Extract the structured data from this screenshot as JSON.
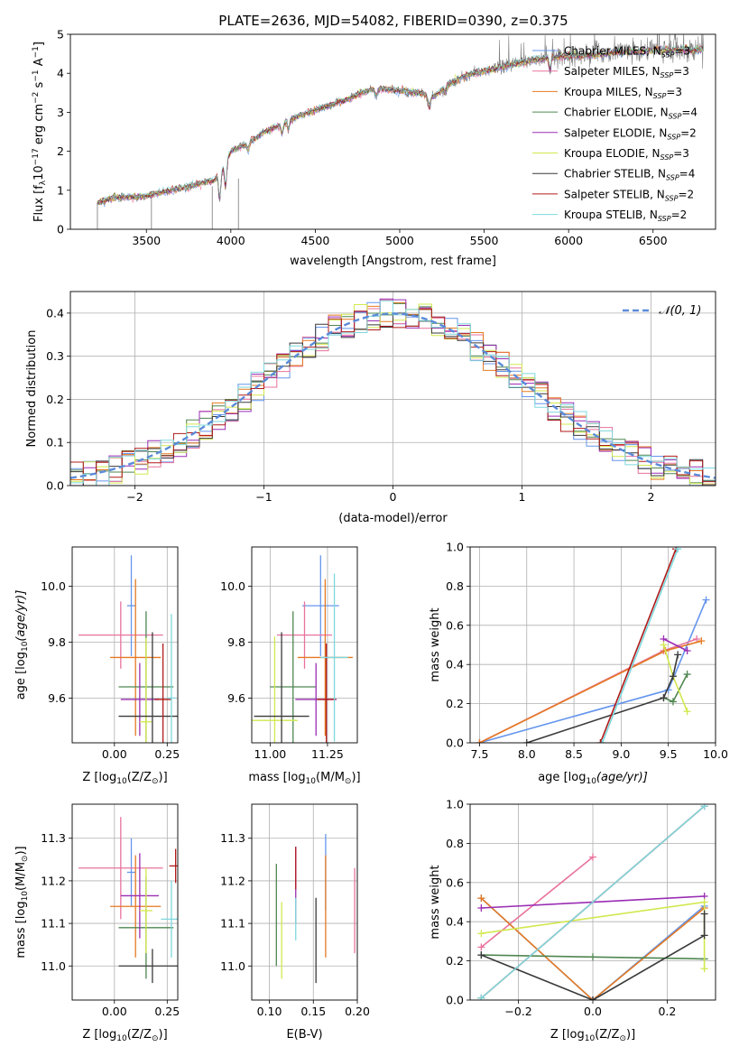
{
  "figure": {
    "title": "PLATE=2636, MJD=54082, FIBERID=0390, z=0.375"
  },
  "models": [
    {
      "name": "Chabrier MILES",
      "nssp": "3",
      "color": "#6495ED"
    },
    {
      "name": "Salpeter MILES",
      "nssp": "3",
      "color": "#E8729D"
    },
    {
      "name": "Kroupa MILES",
      "nssp": "3",
      "color": "#E47922"
    },
    {
      "name": "Chabrier ELODIE",
      "nssp": "4",
      "color": "#4F8650"
    },
    {
      "name": "Salpeter ELODIE",
      "nssp": "2",
      "color": "#9A2DB4"
    },
    {
      "name": "Kroupa ELODIE",
      "nssp": "3",
      "color": "#D2E84E"
    },
    {
      "name": "Chabrier STELIB",
      "nssp": "4",
      "color": "#3A3A3A"
    },
    {
      "name": "Salpeter STELIB",
      "nssp": "2",
      "color": "#B01A1A"
    },
    {
      "name": "Kroupa STELIB",
      "nssp": "2",
      "color": "#7ED8DD"
    }
  ],
  "legend_nssp_label": "N",
  "legend_nssp_sub": "SSP",
  "gauss_legend": "𝒩(0, 1)",
  "chart_data": [
    {
      "id": "spectrum",
      "type": "line",
      "xlabel": "wavelength [Angstrom, rest frame]",
      "ylabel_parts": [
        "Flux [f",
        "λ",
        "10",
        "−17",
        " erg cm",
        "−2",
        " s",
        "−1",
        " A",
        "−1",
        "]"
      ],
      "xlim": [
        3050,
        6870
      ],
      "ylim": [
        0,
        5
      ],
      "xticks": [
        3500,
        4000,
        4500,
        5000,
        5500,
        6000,
        6500
      ],
      "yticks": [
        0,
        1,
        2,
        3,
        4,
        5
      ],
      "xrange_data": [
        3210,
        6800
      ],
      "legend_position": "right",
      "anchors": [
        [
          3210,
          0.68
        ],
        [
          3300,
          0.8
        ],
        [
          3400,
          0.82
        ],
        [
          3500,
          0.85
        ],
        [
          3600,
          0.95
        ],
        [
          3700,
          1.05
        ],
        [
          3800,
          1.15
        ],
        [
          3850,
          1.2
        ],
        [
          3900,
          1.25
        ],
        [
          3950,
          1.55
        ],
        [
          4000,
          2.0
        ],
        [
          4100,
          2.2
        ],
        [
          4200,
          2.5
        ],
        [
          4300,
          2.7
        ],
        [
          4400,
          2.9
        ],
        [
          4500,
          3.05
        ],
        [
          4600,
          3.2
        ],
        [
          4700,
          3.35
        ],
        [
          4800,
          3.55
        ],
        [
          4900,
          3.6
        ],
        [
          5000,
          3.55
        ],
        [
          5100,
          3.5
        ],
        [
          5200,
          3.4
        ],
        [
          5300,
          3.75
        ],
        [
          5400,
          3.95
        ],
        [
          5500,
          4.05
        ],
        [
          5600,
          4.15
        ],
        [
          5700,
          4.25
        ],
        [
          5800,
          4.35
        ],
        [
          5900,
          4.4
        ],
        [
          6000,
          4.45
        ],
        [
          6100,
          4.45
        ],
        [
          6200,
          4.5
        ],
        [
          6300,
          4.55
        ],
        [
          6400,
          4.55
        ],
        [
          6500,
          4.6
        ],
        [
          6600,
          4.6
        ],
        [
          6800,
          4.6
        ]
      ],
      "absorption_features": [
        [
          3934,
          0.75
        ],
        [
          3969,
          0.7
        ],
        [
          4102,
          0.2
        ],
        [
          4304,
          0.3
        ],
        [
          4341,
          0.25
        ],
        [
          4861,
          0.2
        ],
        [
          5175,
          0.35
        ],
        [
          5270,
          0.15
        ],
        [
          5890,
          0.3
        ]
      ]
    },
    {
      "id": "residuals",
      "type": "line",
      "xlabel": "(data-model)/error",
      "ylabel": "Normed distribution",
      "xlim": [
        -2.5,
        2.5
      ],
      "ylim": [
        0,
        0.45
      ],
      "xticks": [
        -2,
        -1,
        0,
        1,
        2
      ],
      "yticks": [
        0.0,
        0.1,
        0.2,
        0.3,
        0.4
      ],
      "grid": true,
      "bin_width": 0.1,
      "gauss_color": "#5B8BD9",
      "legend_position": "top-right"
    },
    {
      "id": "z-age",
      "type": "scatter",
      "xlabel_parts": [
        "Z [log",
        "10",
        "(Z/Z",
        "⊙",
        ")]"
      ],
      "ylabel_parts": [
        "age  [log",
        "10",
        "(age/yr)]"
      ],
      "xlim": [
        -0.2,
        0.3
      ],
      "ylim": [
        9.44,
        10.14
      ],
      "xticks": [
        0.0,
        0.25
      ],
      "yticks": [
        9.6,
        9.8,
        10.0
      ],
      "grid": true,
      "points": [
        [
          0.08,
          9.93,
          0.02,
          0.18
        ],
        [
          0.03,
          9.825,
          0.2,
          0.12
        ],
        [
          0.1,
          9.745,
          0.12,
          0.28
        ],
        [
          0.15,
          9.64,
          0.13,
          0.27
        ],
        [
          0.12,
          9.595,
          0.09,
          0.13
        ],
        [
          0.15,
          9.515,
          0.03,
          0.3
        ],
        [
          0.18,
          9.535,
          0.16,
          0.3
        ],
        [
          0.23,
          9.595,
          0.04,
          0.2
        ],
        [
          0.27,
          9.6,
          0.02,
          0.3
        ]
      ]
    },
    {
      "id": "mass-age",
      "type": "scatter",
      "xlabel_parts": [
        "mass [log",
        "10",
        "(M/M",
        "⊙",
        ")]"
      ],
      "xlim": [
        10.92,
        11.38
      ],
      "ylim": [
        9.44,
        10.14
      ],
      "xticks": [
        11.0,
        11.25
      ],
      "yticks": [
        9.6,
        9.8,
        10.0
      ],
      "grid": true,
      "points": [
        [
          11.22,
          9.93,
          0.08,
          0.18
        ],
        [
          11.15,
          9.825,
          0.12,
          0.12
        ],
        [
          11.24,
          9.745,
          0.12,
          0.28
        ],
        [
          11.1,
          9.64,
          0.1,
          0.27
        ],
        [
          11.2,
          9.595,
          0.09,
          0.13
        ],
        [
          11.02,
          9.52,
          0.1,
          0.3
        ],
        [
          11.05,
          9.535,
          0.12,
          0.3
        ],
        [
          11.245,
          9.595,
          0.04,
          0.2
        ],
        [
          11.28,
          9.745,
          0.06,
          0.3
        ]
      ]
    },
    {
      "id": "weight-age",
      "type": "line",
      "xlabel_parts": [
        "age  [log",
        "10",
        "(age/yr)]"
      ],
      "ylabel": "mass weight",
      "xlim": [
        7.4,
        10.0
      ],
      "ylim": [
        0,
        1
      ],
      "xticks": [
        7.5,
        8.0,
        8.5,
        9.0,
        9.5,
        10.0
      ],
      "yticks": [
        0.0,
        0.2,
        0.4,
        0.6,
        0.8,
        1.0
      ],
      "grid": true,
      "series": [
        [
          [
            7.5,
            0.0
          ],
          [
            9.5,
            0.27
          ],
          [
            9.9,
            0.73
          ]
        ],
        [
          [
            7.5,
            0.0
          ],
          [
            9.45,
            0.47
          ],
          [
            9.8,
            0.53
          ]
        ],
        [
          [
            7.5,
            0.0
          ],
          [
            9.47,
            0.47
          ],
          [
            9.85,
            0.52
          ]
        ],
        [
          [
            9.45,
            0.23
          ],
          [
            9.55,
            0.21
          ],
          [
            9.7,
            0.35
          ]
        ],
        [
          [
            9.45,
            0.53
          ],
          [
            9.7,
            0.47
          ]
        ],
        [
          [
            9.45,
            0.5
          ],
          [
            9.55,
            0.34
          ],
          [
            9.7,
            0.16
          ]
        ],
        [
          [
            8.0,
            0.0
          ],
          [
            9.45,
            0.23
          ],
          [
            9.55,
            0.34
          ],
          [
            9.6,
            0.45
          ]
        ],
        [
          [
            8.78,
            0.0
          ],
          [
            9.58,
            0.99
          ]
        ],
        [
          [
            8.8,
            0.0
          ],
          [
            9.6,
            0.99
          ]
        ]
      ]
    },
    {
      "id": "z-mass",
      "type": "scatter",
      "xlabel_parts": [
        "Z [log",
        "10",
        "(Z/Z",
        "⊙",
        ")]"
      ],
      "ylabel_parts": [
        "mass [log",
        "10",
        "(M/M",
        "⊙",
        ")]"
      ],
      "xlim": [
        -0.2,
        0.3
      ],
      "ylim": [
        10.92,
        11.38
      ],
      "xticks": [
        0.0,
        0.25
      ],
      "yticks": [
        11.0,
        11.1,
        11.2,
        11.3
      ],
      "grid": true,
      "points": [
        [
          0.08,
          11.22,
          0.02,
          0.08
        ],
        [
          0.03,
          11.23,
          0.2,
          0.12
        ],
        [
          0.1,
          11.14,
          0.12,
          0.12
        ],
        [
          0.15,
          11.09,
          0.13,
          0.12
        ],
        [
          0.12,
          11.165,
          0.09,
          0.1
        ],
        [
          0.15,
          11.13,
          0.03,
          0.1
        ],
        [
          0.18,
          11.0,
          0.16,
          0.04
        ],
        [
          0.29,
          11.235,
          0.03,
          0.04
        ],
        [
          0.27,
          11.11,
          0.05,
          0.09
        ]
      ]
    },
    {
      "id": "ebv-mass",
      "type": "scatter",
      "xlabel": "E(B-V)",
      "xlim": [
        0.08,
        0.2
      ],
      "ylim": [
        10.92,
        11.38
      ],
      "xticks": [
        0.1,
        0.15,
        0.2
      ],
      "yticks": [
        11.0,
        11.1,
        11.2,
        11.3
      ],
      "grid": true,
      "points": [
        [
          0.164,
          11.22,
          0,
          0.09
        ],
        [
          0.197,
          11.13,
          0,
          0.1
        ],
        [
          0.164,
          11.14,
          0,
          0.12
        ],
        [
          0.108,
          11.12,
          0,
          0.12
        ],
        [
          0.13,
          11.19,
          0,
          0.09
        ],
        [
          0.114,
          11.06,
          0,
          0.09
        ],
        [
          0.153,
          11.06,
          0,
          0.1
        ],
        [
          0.13,
          11.23,
          0,
          0.05
        ],
        [
          0.13,
          11.11,
          0,
          0.05
        ]
      ]
    },
    {
      "id": "weight-z",
      "type": "line",
      "xlabel_parts": [
        "Z [log",
        "10",
        "(Z/Z",
        "⊙",
        ")]"
      ],
      "ylabel": "mass weight",
      "xlim": [
        -0.33,
        0.33
      ],
      "ylim": [
        0,
        1
      ],
      "xticks": [
        -0.2,
        0.0,
        0.2
      ],
      "yticks": [
        0.0,
        0.2,
        0.4,
        0.6,
        0.8,
        1.0
      ],
      "grid": true,
      "series": [
        [
          [
            -0.3,
            0.52
          ],
          [
            0.0,
            0.0
          ],
          [
            0.3,
            0.48
          ]
        ],
        [
          [
            -0.3,
            0.27
          ],
          [
            0.0,
            0.73
          ]
        ],
        [
          [
            -0.3,
            0.52
          ],
          [
            0.0,
            0.0
          ],
          [
            0.3,
            0.47
          ]
        ],
        [
          [
            -0.3,
            0.23
          ],
          [
            0.0,
            0.22
          ],
          [
            0.3,
            0.21
          ]
        ],
        [
          [
            -0.3,
            0.47
          ],
          [
            0.3,
            0.53
          ]
        ],
        [
          [
            -0.3,
            0.34
          ],
          [
            0.3,
            0.5
          ],
          [
            0.3,
            0.16
          ]
        ],
        [
          [
            -0.3,
            0.23
          ],
          [
            0.0,
            0.0
          ],
          [
            0.3,
            0.33
          ],
          [
            0.3,
            0.44
          ]
        ],
        [
          [
            -0.3,
            0.01
          ],
          [
            0.3,
            0.99
          ]
        ],
        [
          [
            -0.3,
            0.01
          ],
          [
            0.3,
            0.99
          ]
        ]
      ]
    }
  ]
}
